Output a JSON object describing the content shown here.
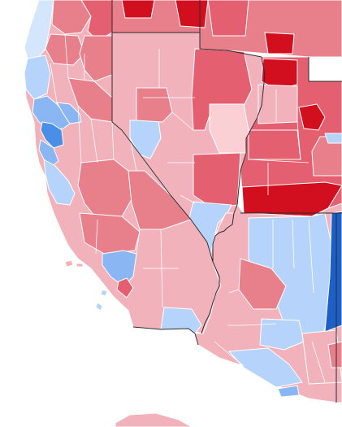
{
  "map": {
    "type": "county-level choropleth (partisan vote share)",
    "palette": {
      "background": "#ffffff",
      "state_border": "#2b2b2b",
      "county_border": "#ffffff",
      "strong_red": "#d20f1f",
      "red": "#e45f6f",
      "medium_red": "#e8808c",
      "light_red": "#f2b2bc",
      "faint_red": "#fad0d5",
      "faint_blue": "#d3e6fb",
      "light_blue": "#b6d4fb",
      "medium_blue": "#8ab6f3",
      "blue": "#4a8ee6",
      "strong_blue": "#1b5fc7"
    },
    "regions": [
      {
        "name": "california-interior",
        "shade": "light_red"
      },
      {
        "name": "california-north-coast",
        "shade": "faint_blue"
      },
      {
        "name": "bay-area",
        "shade": "medium_blue"
      },
      {
        "name": "bay-area-core",
        "shade": "blue"
      },
      {
        "name": "central-coast",
        "shade": "light_blue"
      },
      {
        "name": "central-valley-south",
        "shade": "medium_red"
      },
      {
        "name": "southern-california-desert",
        "shade": "light_red"
      },
      {
        "name": "los-angeles",
        "shade": "medium_blue"
      },
      {
        "name": "orange",
        "shade": "red"
      },
      {
        "name": "imperial",
        "shade": "light_blue"
      },
      {
        "name": "nevada",
        "shade": "light_red"
      },
      {
        "name": "washoe",
        "shade": "light_blue"
      },
      {
        "name": "clark",
        "shade": "light_blue"
      },
      {
        "name": "nevada-east",
        "shade": "red"
      },
      {
        "name": "nevada-center-faint",
        "shade": "faint_red"
      },
      {
        "name": "oregon-idaho",
        "shade": "medium_red"
      },
      {
        "name": "utah",
        "shade": "red"
      },
      {
        "name": "utah-south-strong",
        "shade": "strong_red"
      },
      {
        "name": "salt-lake",
        "shade": "strong_red"
      },
      {
        "name": "arizona",
        "shade": "light_red"
      },
      {
        "name": "arizona-north",
        "shade": "light_blue"
      },
      {
        "name": "arizona-east",
        "shade": "strong_blue"
      },
      {
        "name": "new-mexico-edge",
        "shade": "medium_red"
      },
      {
        "name": "sonora-strip",
        "shade": "light_red"
      }
    ]
  }
}
